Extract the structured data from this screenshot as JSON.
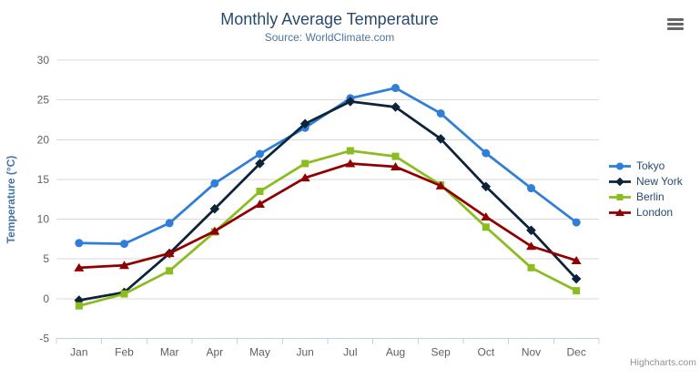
{
  "header": {
    "title": "Monthly Average Temperature",
    "subtitle": "Source: WorldClimate.com"
  },
  "icons": {
    "menu": "hamburger-icon"
  },
  "credits": {
    "label": "Highcharts.com"
  },
  "styles": {
    "title_color": "#274b6d",
    "subtitle_color": "#4d759e",
    "y_axis_title_color": "#4572a7",
    "axis_label_color": "#606060",
    "grid_color": "#d8d8d8",
    "axis_line_color": "#c0d0e0",
    "legend_text_color": "#274b6d",
    "credits_color": "#909090"
  },
  "chart_data": {
    "type": "line",
    "title": "Monthly Average Temperature",
    "subtitle": "Source: WorldClimate.com",
    "categories": [
      "Jan",
      "Feb",
      "Mar",
      "Apr",
      "May",
      "Jun",
      "Jul",
      "Aug",
      "Sep",
      "Oct",
      "Nov",
      "Dec"
    ],
    "xlabel": "",
    "ylabel": "Temperature (°C)",
    "ylim": [
      -5,
      30
    ],
    "ytick_interval": 5,
    "grid": true,
    "legend_position": "right",
    "series": [
      {
        "name": "Tokyo",
        "color": "#2f7ed8",
        "marker": "circle",
        "values": [
          7.0,
          6.9,
          9.5,
          14.5,
          18.2,
          21.5,
          25.2,
          26.5,
          23.3,
          18.3,
          13.9,
          9.6
        ]
      },
      {
        "name": "New York",
        "color": "#0d233a",
        "marker": "diamond",
        "values": [
          -0.2,
          0.8,
          5.7,
          11.3,
          17.0,
          22.0,
          24.8,
          24.1,
          20.1,
          14.1,
          8.6,
          2.5
        ]
      },
      {
        "name": "Berlin",
        "color": "#8bbc21",
        "marker": "square",
        "values": [
          -0.9,
          0.6,
          3.5,
          8.4,
          13.5,
          17.0,
          18.6,
          17.9,
          14.3,
          9.0,
          3.9,
          1.0
        ]
      },
      {
        "name": "London",
        "color": "#910000",
        "marker": "triangle",
        "values": [
          3.9,
          4.2,
          5.7,
          8.5,
          11.9,
          15.2,
          17.0,
          16.6,
          14.2,
          10.3,
          6.6,
          4.8
        ]
      }
    ]
  }
}
